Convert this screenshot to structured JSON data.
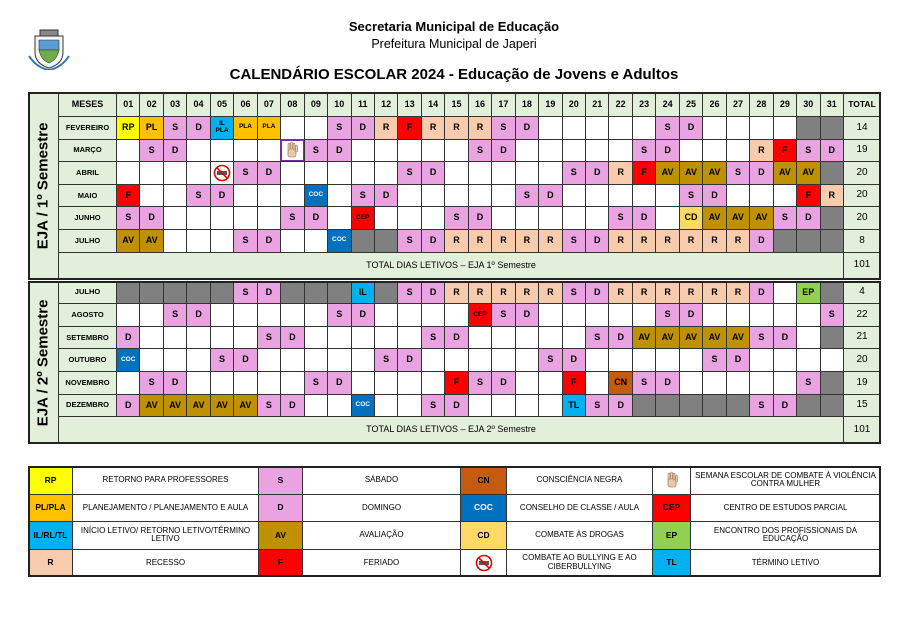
{
  "header": {
    "org": "Secretaria Municipal de Educação",
    "subtitle": "Prefeitura Municipal de Japeri",
    "title": "CALENDÁRIO ESCOLAR 2024 - Educação de Jovens e Adultos"
  },
  "colors": {
    "RP": "#ffff00",
    "PL": "#ffc000",
    "PLA": "#ffc000",
    "PL/PLA": "#ffc000",
    "IL": "#00b0f0",
    "IL PLA": "#00b0f0",
    "IL/RL/TL": "#00b0f0",
    "TL": "#00b0f0",
    "R": "#f8cbad",
    "S": "#e9a3e0",
    "D": "#e9a3e0",
    "F": "#ff0000",
    "AV": "#bf9000",
    "CN": "#c55a11",
    "COC": "#0070c0",
    "CD": "#ffd966",
    "CEP": "#ff0000",
    "EP": "#92d050",
    "shade": "#808080",
    "band": "#e2efda"
  },
  "table": {
    "months_header": "MESES",
    "total_header": "TOTAL",
    "days": [
      "01",
      "02",
      "03",
      "04",
      "05",
      "06",
      "07",
      "08",
      "09",
      "10",
      "11",
      "12",
      "13",
      "14",
      "15",
      "16",
      "17",
      "18",
      "19",
      "20",
      "21",
      "22",
      "23",
      "24",
      "25",
      "26",
      "27",
      "28",
      "29",
      "30",
      "31"
    ],
    "semesters": [
      {
        "label": "EJA / 1º Semestre",
        "total_label": "TOTAL DIAS LETIVOS – EJA 1º Semestre",
        "total": 101,
        "rows": [
          {
            "month": "FEVEREIRO",
            "total": 14,
            "shaded": [
              30,
              31
            ],
            "cells": [
              "RP",
              "PL",
              "S",
              "D",
              "IL PLA",
              "PLA",
              "PLA",
              null,
              null,
              "S",
              "D",
              "R",
              "F",
              "R",
              "R",
              "R",
              "S",
              "D",
              null,
              null,
              null,
              null,
              null,
              "S",
              "D",
              null,
              null,
              null,
              null,
              null,
              null
            ]
          },
          {
            "month": "MARÇO",
            "total": 19,
            "shaded": [],
            "cells": [
              null,
              "S",
              "D",
              null,
              null,
              null,
              null,
              {
                "icon": "hand"
              },
              "S",
              "D",
              null,
              null,
              null,
              null,
              null,
              "S",
              "D",
              null,
              null,
              null,
              null,
              null,
              "S",
              "D",
              null,
              null,
              null,
              "R",
              "F",
              "S",
              "D"
            ]
          },
          {
            "month": "ABRIL",
            "total": 20,
            "shaded": [
              31
            ],
            "cells": [
              null,
              null,
              null,
              null,
              {
                "icon": "no-bullying"
              },
              "S",
              "D",
              null,
              null,
              null,
              null,
              null,
              "S",
              "D",
              null,
              null,
              null,
              null,
              null,
              "S",
              "D",
              "R",
              "F",
              "AV",
              "AV",
              "AV",
              "S",
              "D",
              "AV",
              "AV",
              null
            ]
          },
          {
            "month": "MAIO",
            "total": 20,
            "shaded": [],
            "cells": [
              "F",
              null,
              null,
              "S",
              "D",
              null,
              null,
              null,
              "COC",
              null,
              "S",
              "D",
              null,
              null,
              null,
              null,
              null,
              "S",
              "D",
              null,
              null,
              null,
              null,
              null,
              "S",
              "D",
              null,
              null,
              null,
              "F",
              "R"
            ]
          },
          {
            "month": "JUNHO",
            "total": 20,
            "shaded": [
              31
            ],
            "cells": [
              "S",
              "D",
              null,
              null,
              null,
              null,
              null,
              "S",
              "D",
              null,
              "CEP",
              null,
              null,
              null,
              "S",
              "D",
              null,
              null,
              null,
              null,
              null,
              "S",
              "D",
              null,
              "CD",
              "AV",
              "AV",
              "AV",
              "S",
              "D",
              null
            ]
          },
          {
            "month": "JULHO",
            "total": 8,
            "shaded": [
              11,
              12,
              29,
              30,
              31
            ],
            "cells": [
              "AV",
              "AV",
              null,
              null,
              null,
              "S",
              "D",
              null,
              null,
              "COC",
              null,
              null,
              "S",
              "D",
              "R",
              "R",
              "R",
              "R",
              "R",
              "S",
              "D",
              "R",
              "R",
              "R",
              "R",
              "R",
              "R",
              "D",
              null,
              null,
              null
            ]
          }
        ]
      },
      {
        "label": "EJA / 2º Semestre",
        "total_label": "TOTAL DIAS LETIVOS – EJA 2º Semestre",
        "total": 101,
        "rows": [
          {
            "month": "JULHO",
            "total": 4,
            "shaded": [
              1,
              2,
              3,
              4,
              5,
              8,
              9,
              10,
              12,
              31
            ],
            "cells": [
              null,
              null,
              null,
              null,
              null,
              "S",
              "D",
              null,
              null,
              null,
              "IL",
              null,
              "S",
              "D",
              "R",
              "R",
              "R",
              "R",
              "R",
              "S",
              "D",
              "R",
              "R",
              "R",
              "R",
              "R",
              "R",
              "D",
              null,
              "EP",
              null
            ]
          },
          {
            "month": "AGOSTO",
            "total": 22,
            "shaded": [],
            "cells": [
              null,
              null,
              "S",
              "D",
              null,
              null,
              null,
              null,
              null,
              "S",
              "D",
              null,
              null,
              null,
              null,
              "CEP",
              "S",
              "D",
              null,
              null,
              null,
              null,
              null,
              "S",
              "D",
              null,
              null,
              null,
              null,
              null,
              "S"
            ]
          },
          {
            "month": "SETEMBRO",
            "total": 21,
            "shaded": [
              31
            ],
            "cells": [
              "D",
              null,
              null,
              null,
              null,
              null,
              "S",
              "D",
              null,
              null,
              null,
              null,
              null,
              "S",
              "D",
              null,
              null,
              null,
              null,
              null,
              "S",
              "D",
              "AV",
              "AV",
              "AV",
              "AV",
              "AV",
              "S",
              "D",
              null,
              null
            ]
          },
          {
            "month": "OUTUBRO",
            "total": 20,
            "shaded": [],
            "cells": [
              "COC",
              null,
              null,
              null,
              "S",
              "D",
              null,
              null,
              null,
              null,
              null,
              "S",
              "D",
              null,
              null,
              null,
              null,
              null,
              "S",
              "D",
              null,
              null,
              null,
              null,
              null,
              "S",
              "D",
              null,
              null,
              null,
              null
            ]
          },
          {
            "month": "NOVEMBRO",
            "total": 19,
            "shaded": [
              31
            ],
            "cells": [
              null,
              "S",
              "D",
              null,
              null,
              null,
              null,
              null,
              "S",
              "D",
              null,
              null,
              null,
              null,
              "F",
              "S",
              "D",
              null,
              null,
              "F",
              null,
              "CN",
              "S",
              "D",
              null,
              null,
              null,
              null,
              null,
              "S",
              null
            ]
          },
          {
            "month": "DEZEMBRO",
            "total": 15,
            "shaded": [
              23,
              24,
              25,
              26,
              27,
              30,
              31
            ],
            "cells": [
              "D",
              "AV",
              "AV",
              "AV",
              "AV",
              "AV",
              "S",
              "D",
              null,
              null,
              "COC",
              null,
              null,
              "S",
              "D",
              null,
              null,
              null,
              null,
              "TL",
              "S",
              "D",
              null,
              null,
              null,
              null,
              null,
              "S",
              "D",
              null,
              null
            ]
          }
        ]
      }
    ]
  },
  "legend": {
    "columns": [
      [
        {
          "code": "RP",
          "text": "RETORNO PARA PROFESSORES"
        },
        {
          "code": "PL/PLA",
          "text": "PLANEJAMENTO / PLANEJAMENTO E AULA"
        },
        {
          "code": "IL/RL/TL",
          "text": "INÍCIO LETIVO/ RETORNO LETIVO/TÉRMINO LETIVO"
        },
        {
          "code": "R",
          "text": "RECESSO"
        }
      ],
      [
        {
          "code": "S",
          "text": "SÁBADO"
        },
        {
          "code": "D",
          "text": "DOMINGO"
        },
        {
          "code": "AV",
          "text": "AVALIAÇÃO"
        },
        {
          "code": "F",
          "text": "FERIADO"
        }
      ],
      [
        {
          "code": "CN",
          "text": "CONSCIÊNCIA NEGRA"
        },
        {
          "code": "COC",
          "text": "CONSELHO DE CLASSE / AULA"
        },
        {
          "code": "CD",
          "text": "COMBATE ÀS DROGAS"
        },
        {
          "icon": "no-bullying",
          "text": "COMBATE AO BULLYING E AO CIBERBULLYING"
        }
      ],
      [
        {
          "icon": "hand",
          "text": "SEMANA ESCOLAR DE COMBATE À VIOLÊNCIA CONTRA MULHER"
        },
        {
          "code": "CEP",
          "text": "CENTRO DE ESTUDOS PARCIAL"
        },
        {
          "code": "EP",
          "text": "ENCONTRO DOS PROFISSIONAIS DA EDUCAÇÃO"
        },
        {
          "code": "TL",
          "text": "TÉRMINO LETIVO"
        }
      ]
    ]
  }
}
